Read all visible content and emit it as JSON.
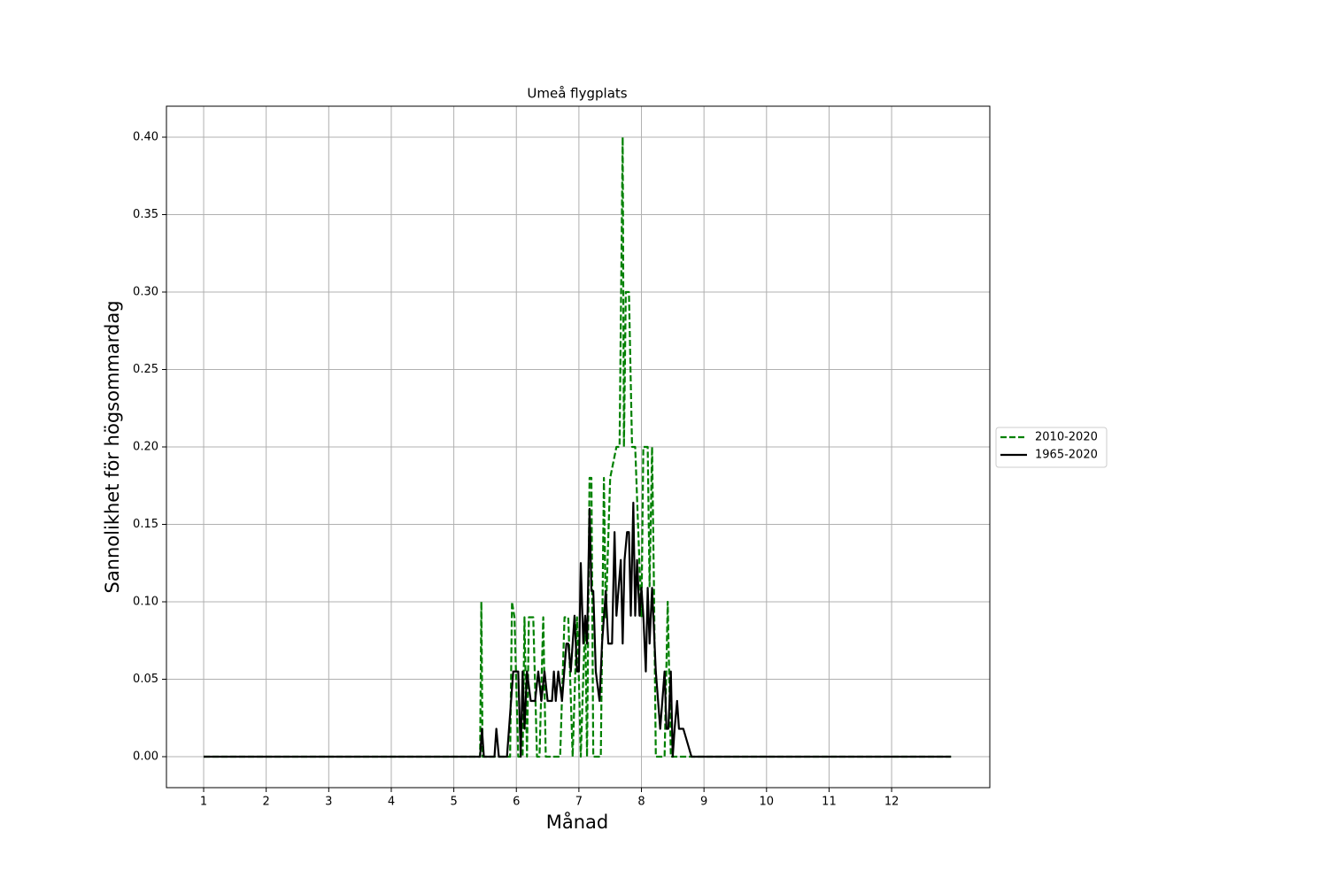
{
  "chart_data": {
    "type": "line",
    "title": "Umeå flygplats",
    "x_label": "Månad",
    "y_label": "Sannolikhet för högsommardag",
    "xlim": [
      0.405,
      13.57
    ],
    "ylim": [
      -0.02,
      0.42
    ],
    "xticks": [
      1,
      2,
      3,
      4,
      5,
      6,
      7,
      8,
      9,
      10,
      11,
      12
    ],
    "yticks": [
      {
        "value": 0,
        "label": "0.00"
      },
      {
        "value": 0.05,
        "label": "0.05"
      },
      {
        "value": 0.1,
        "label": "0.10"
      },
      {
        "value": 0.15,
        "label": "0.15"
      },
      {
        "value": 0.2,
        "label": "0.20"
      },
      {
        "value": 0.25,
        "label": "0.25"
      },
      {
        "value": 0.3,
        "label": "0.30"
      },
      {
        "value": 0.35,
        "label": "0.35"
      },
      {
        "value": 0.4,
        "label": "0.40"
      }
    ],
    "grid": true,
    "legend": "right",
    "series": [
      {
        "name": "2010-2020",
        "color": "#008000",
        "dash": true,
        "x": [
          1,
          5.42,
          5.44,
          5.46,
          5.9,
          5.93,
          5.97,
          6.03,
          6.1,
          6.13,
          6.17,
          6.2,
          6.27,
          6.33,
          6.37,
          6.43,
          6.47,
          6.5,
          6.7,
          6.77,
          6.83,
          6.9,
          6.97,
          7.0,
          7.03,
          7.1,
          7.13,
          7.17,
          7.2,
          7.23,
          7.3,
          7.35,
          7.4,
          7.43,
          7.5,
          7.6,
          7.65,
          7.7,
          7.72,
          7.75,
          7.8,
          7.85,
          7.9,
          8.0,
          8.03,
          8.1,
          8.13,
          8.17,
          8.2,
          8.23,
          8.3,
          8.37,
          8.42,
          8.47,
          8.6,
          8.7,
          12.95
        ],
        "values": [
          0,
          0,
          0.1,
          0,
          0,
          0.1,
          0.09,
          0,
          0,
          0.09,
          0,
          0.09,
          0.09,
          0,
          0,
          0.09,
          0,
          0,
          0,
          0.09,
          0.09,
          0,
          0.09,
          0.05,
          0,
          0.09,
          0,
          0.18,
          0.18,
          0,
          0,
          0,
          0.18,
          0.09,
          0.18,
          0.2,
          0.2,
          0.4,
          0.2,
          0.3,
          0.3,
          0.2,
          0.2,
          0.09,
          0.2,
          0.2,
          0.11,
          0.2,
          0.11,
          0,
          0,
          0,
          0.1,
          0,
          0,
          0,
          0
        ]
      },
      {
        "name": "1965-2020",
        "color": "#000000",
        "dash": false,
        "x": [
          1,
          5.42,
          5.45,
          5.48,
          5.65,
          5.68,
          5.72,
          5.85,
          5.95,
          6.03,
          6.07,
          6.1,
          6.13,
          6.17,
          6.23,
          6.3,
          6.35,
          6.4,
          6.45,
          6.5,
          6.57,
          6.6,
          6.63,
          6.67,
          6.73,
          6.8,
          6.83,
          6.87,
          6.93,
          6.97,
          7.0,
          7.03,
          7.07,
          7.1,
          7.13,
          7.17,
          7.2,
          7.23,
          7.27,
          7.33,
          7.37,
          7.43,
          7.47,
          7.53,
          7.57,
          7.6,
          7.67,
          7.7,
          7.73,
          7.77,
          7.8,
          7.83,
          7.87,
          7.9,
          7.93,
          7.97,
          8.0,
          8.03,
          8.07,
          8.1,
          8.13,
          8.17,
          8.23,
          8.3,
          8.37,
          8.4,
          8.43,
          8.47,
          8.5,
          8.53,
          8.57,
          8.6,
          8.67,
          8.8,
          12.95
        ],
        "values": [
          0,
          0,
          0.018,
          0,
          0,
          0.018,
          0,
          0,
          0.055,
          0.055,
          0,
          0.055,
          0.018,
          0.055,
          0.036,
          0.036,
          0.055,
          0.036,
          0.055,
          0.036,
          0.036,
          0.055,
          0.036,
          0.055,
          0.036,
          0.073,
          0.073,
          0.055,
          0.091,
          0.055,
          0.055,
          0.125,
          0.073,
          0.091,
          0.073,
          0.16,
          0.107,
          0.107,
          0.055,
          0.036,
          0.073,
          0.107,
          0.073,
          0.073,
          0.145,
          0.091,
          0.127,
          0.073,
          0.127,
          0.145,
          0.145,
          0.091,
          0.164,
          0.091,
          0.127,
          0.091,
          0.109,
          0.091,
          0.055,
          0.109,
          0.073,
          0.109,
          0.055,
          0.018,
          0.055,
          0.018,
          0.018,
          0.055,
          0,
          0.018,
          0.036,
          0.018,
          0.018,
          0,
          0
        ]
      }
    ]
  }
}
